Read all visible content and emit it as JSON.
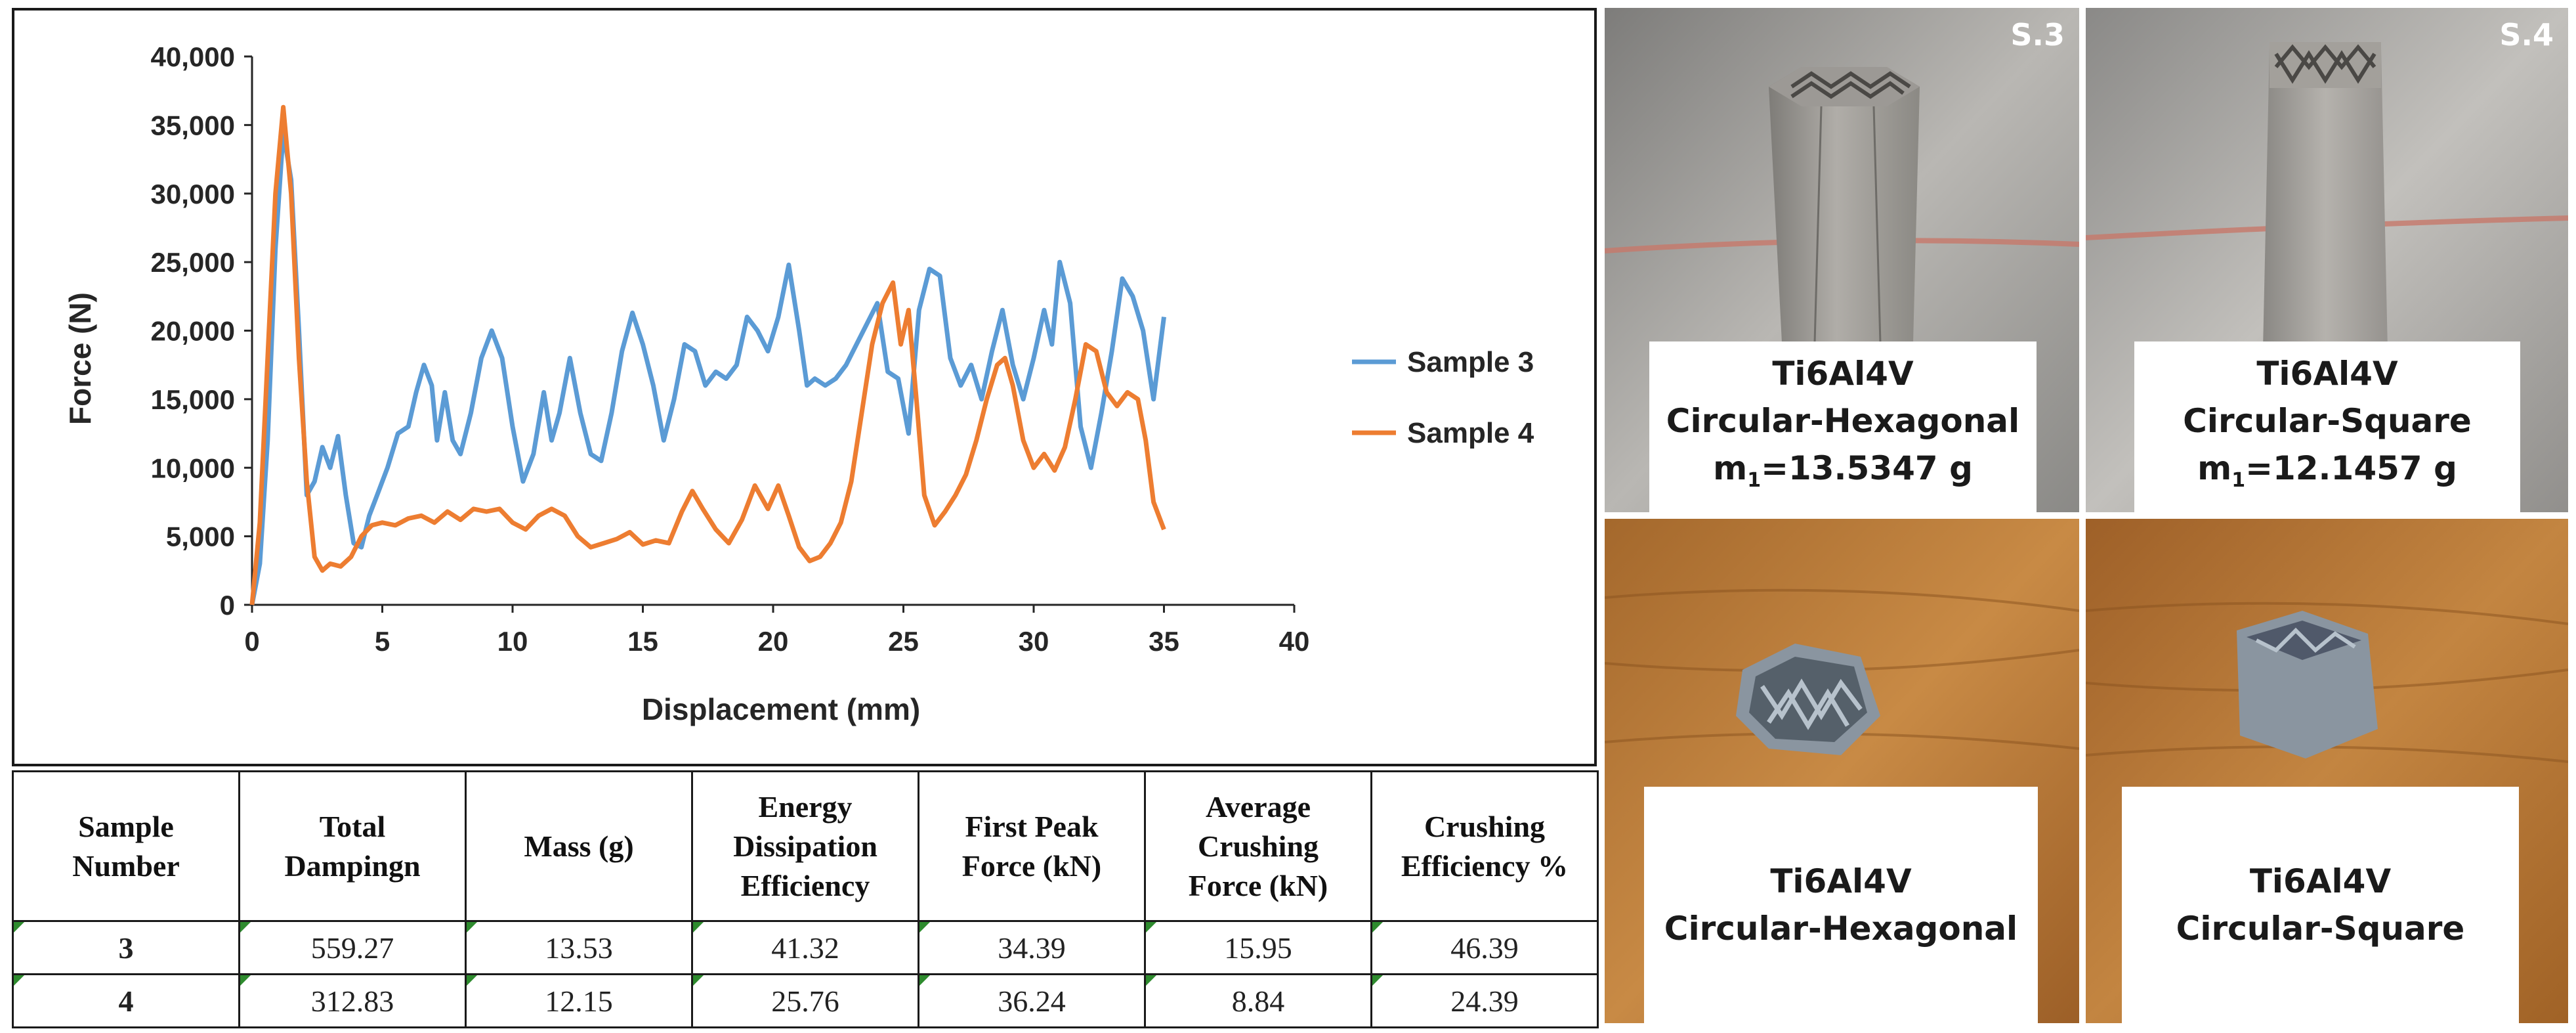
{
  "chart_data": {
    "type": "line",
    "title": "",
    "xlabel": "Displacement (mm)",
    "ylabel": "Force (N)",
    "xlim": [
      0,
      40
    ],
    "ylim": [
      0,
      40000
    ],
    "x_ticks": [
      "0",
      "5",
      "10",
      "15",
      "20",
      "25",
      "30",
      "35",
      "40"
    ],
    "y_ticks": [
      "0",
      "5,000",
      "10,000",
      "15,000",
      "20,000",
      "25,000",
      "30,000",
      "35,000",
      "40,000"
    ],
    "grid": false,
    "legend": "right",
    "series": [
      {
        "name": "Sample 3",
        "color": "#5b9bd5",
        "points": [
          [
            0,
            0
          ],
          [
            0.3,
            3000
          ],
          [
            0.6,
            12000
          ],
          [
            0.9,
            26000
          ],
          [
            1.2,
            34500
          ],
          [
            1.5,
            31000
          ],
          [
            1.8,
            20000
          ],
          [
            2.1,
            8000
          ],
          [
            2.4,
            9000
          ],
          [
            2.7,
            11500
          ],
          [
            3.0,
            10000
          ],
          [
            3.3,
            12300
          ],
          [
            3.6,
            8000
          ],
          [
            3.9,
            4500
          ],
          [
            4.2,
            4200
          ],
          [
            4.5,
            6500
          ],
          [
            4.8,
            8000
          ],
          [
            5.2,
            10000
          ],
          [
            5.6,
            12500
          ],
          [
            6.0,
            13000
          ],
          [
            6.3,
            15500
          ],
          [
            6.6,
            17500
          ],
          [
            6.9,
            16000
          ],
          [
            7.1,
            12000
          ],
          [
            7.4,
            15500
          ],
          [
            7.7,
            12000
          ],
          [
            8.0,
            11000
          ],
          [
            8.4,
            14000
          ],
          [
            8.8,
            18000
          ],
          [
            9.2,
            20000
          ],
          [
            9.6,
            18000
          ],
          [
            10.0,
            13000
          ],
          [
            10.4,
            9000
          ],
          [
            10.8,
            11000
          ],
          [
            11.2,
            15500
          ],
          [
            11.5,
            12000
          ],
          [
            11.8,
            14000
          ],
          [
            12.2,
            18000
          ],
          [
            12.6,
            14000
          ],
          [
            13.0,
            11000
          ],
          [
            13.4,
            10500
          ],
          [
            13.8,
            14000
          ],
          [
            14.2,
            18500
          ],
          [
            14.6,
            21300
          ],
          [
            15.0,
            19000
          ],
          [
            15.4,
            16000
          ],
          [
            15.8,
            12000
          ],
          [
            16.2,
            15000
          ],
          [
            16.6,
            19000
          ],
          [
            17.0,
            18500
          ],
          [
            17.4,
            16000
          ],
          [
            17.8,
            17000
          ],
          [
            18.2,
            16500
          ],
          [
            18.6,
            17500
          ],
          [
            19.0,
            21000
          ],
          [
            19.4,
            20000
          ],
          [
            19.8,
            18500
          ],
          [
            20.2,
            21000
          ],
          [
            20.6,
            24800
          ],
          [
            21.0,
            20000
          ],
          [
            21.3,
            16000
          ],
          [
            21.6,
            16500
          ],
          [
            22.0,
            16000
          ],
          [
            22.4,
            16500
          ],
          [
            22.8,
            17500
          ],
          [
            23.2,
            19000
          ],
          [
            23.6,
            20500
          ],
          [
            24.0,
            22000
          ],
          [
            24.4,
            17000
          ],
          [
            24.8,
            16500
          ],
          [
            25.2,
            12500
          ],
          [
            25.6,
            21500
          ],
          [
            26.0,
            24500
          ],
          [
            26.4,
            24000
          ],
          [
            26.8,
            18000
          ],
          [
            27.2,
            16000
          ],
          [
            27.6,
            17500
          ],
          [
            28.0,
            15000
          ],
          [
            28.4,
            18500
          ],
          [
            28.8,
            21500
          ],
          [
            29.2,
            17500
          ],
          [
            29.6,
            15000
          ],
          [
            30.0,
            18000
          ],
          [
            30.4,
            21500
          ],
          [
            30.7,
            19000
          ],
          [
            31.0,
            25000
          ],
          [
            31.4,
            22000
          ],
          [
            31.8,
            13000
          ],
          [
            32.2,
            10000
          ],
          [
            32.6,
            14000
          ],
          [
            33.0,
            18500
          ],
          [
            33.4,
            23800
          ],
          [
            33.8,
            22500
          ],
          [
            34.2,
            20000
          ],
          [
            34.6,
            15000
          ],
          [
            35.0,
            21000
          ]
        ]
      },
      {
        "name": "Sample 4",
        "color": "#ed7d31",
        "points": [
          [
            0,
            0
          ],
          [
            0.3,
            6000
          ],
          [
            0.6,
            18000
          ],
          [
            0.9,
            30000
          ],
          [
            1.2,
            36300
          ],
          [
            1.5,
            30000
          ],
          [
            1.8,
            18000
          ],
          [
            2.1,
            9000
          ],
          [
            2.4,
            3500
          ],
          [
            2.7,
            2500
          ],
          [
            3.0,
            3000
          ],
          [
            3.4,
            2800
          ],
          [
            3.8,
            3500
          ],
          [
            4.2,
            5000
          ],
          [
            4.6,
            5800
          ],
          [
            5.0,
            6000
          ],
          [
            5.5,
            5800
          ],
          [
            6.0,
            6300
          ],
          [
            6.5,
            6500
          ],
          [
            7.0,
            6000
          ],
          [
            7.5,
            6800
          ],
          [
            8.0,
            6200
          ],
          [
            8.5,
            7000
          ],
          [
            9.0,
            6800
          ],
          [
            9.5,
            7000
          ],
          [
            10.0,
            6000
          ],
          [
            10.5,
            5500
          ],
          [
            11.0,
            6500
          ],
          [
            11.5,
            7000
          ],
          [
            12.0,
            6500
          ],
          [
            12.5,
            5000
          ],
          [
            13.0,
            4200
          ],
          [
            13.5,
            4500
          ],
          [
            14.0,
            4800
          ],
          [
            14.5,
            5300
          ],
          [
            15.0,
            4400
          ],
          [
            15.5,
            4700
          ],
          [
            16.0,
            4500
          ],
          [
            16.5,
            6800
          ],
          [
            16.9,
            8300
          ],
          [
            17.3,
            7000
          ],
          [
            17.8,
            5500
          ],
          [
            18.3,
            4500
          ],
          [
            18.8,
            6200
          ],
          [
            19.3,
            8700
          ],
          [
            19.8,
            7000
          ],
          [
            20.2,
            8700
          ],
          [
            20.6,
            6500
          ],
          [
            21.0,
            4200
          ],
          [
            21.4,
            3200
          ],
          [
            21.8,
            3500
          ],
          [
            22.2,
            4500
          ],
          [
            22.6,
            6000
          ],
          [
            23.0,
            9000
          ],
          [
            23.4,
            14000
          ],
          [
            23.8,
            19000
          ],
          [
            24.2,
            22000
          ],
          [
            24.6,
            23500
          ],
          [
            24.9,
            19000
          ],
          [
            25.2,
            21500
          ],
          [
            25.5,
            15000
          ],
          [
            25.8,
            8000
          ],
          [
            26.2,
            5800
          ],
          [
            26.6,
            6800
          ],
          [
            27.0,
            8000
          ],
          [
            27.4,
            9500
          ],
          [
            27.8,
            12000
          ],
          [
            28.2,
            15000
          ],
          [
            28.6,
            17500
          ],
          [
            28.9,
            18000
          ],
          [
            29.2,
            16000
          ],
          [
            29.6,
            12000
          ],
          [
            30.0,
            10000
          ],
          [
            30.4,
            11000
          ],
          [
            30.8,
            9800
          ],
          [
            31.2,
            11500
          ],
          [
            31.6,
            15000
          ],
          [
            32.0,
            19000
          ],
          [
            32.4,
            18500
          ],
          [
            32.8,
            15500
          ],
          [
            33.2,
            14500
          ],
          [
            33.6,
            15500
          ],
          [
            34.0,
            15000
          ],
          [
            34.3,
            12000
          ],
          [
            34.6,
            7500
          ],
          [
            35.0,
            5500
          ]
        ]
      }
    ]
  },
  "table": {
    "headers": [
      {
        "l1": "Sample",
        "l2": "Number",
        "l3": ""
      },
      {
        "l1": "Total",
        "l2": "Dampingn",
        "l3": ""
      },
      {
        "l1": "Mass (g)",
        "l2": "",
        "l3": ""
      },
      {
        "l1": "Energy",
        "l2": "Dissipation",
        "l3": "Efficiency"
      },
      {
        "l1": "First Peak",
        "l2": "Force (kN)",
        "l3": ""
      },
      {
        "l1": "Average",
        "l2": "Crushing",
        "l3": "Force (kN)"
      },
      {
        "l1": "Crushing",
        "l2": "Efficiency %",
        "l3": ""
      }
    ],
    "rows": [
      [
        "3",
        "559.27",
        "13.53",
        "41.32",
        "34.39",
        "15.95",
        "46.39"
      ],
      [
        "4",
        "312.83",
        "12.15",
        "25.76",
        "36.24",
        "8.84",
        "24.39"
      ]
    ]
  },
  "photos": {
    "top_left": {
      "tag": "S.3",
      "line1": "Ti6Al4V",
      "line2": "Circular-Hexagonal",
      "mass_prefix": "m",
      "mass_sub": "1",
      "mass_value": "=13.5347 g"
    },
    "top_right": {
      "tag": "S.4",
      "line1": "Ti6Al4V",
      "line2": "Circular-Square",
      "mass_prefix": "m",
      "mass_sub": "1",
      "mass_value": "=12.1457 g"
    },
    "bottom_left": {
      "line1": "Ti6Al4V",
      "line2": "Circular-Hexagonal"
    },
    "bottom_right": {
      "line1": "Ti6Al4V",
      "line2": "Circular-Square"
    }
  }
}
